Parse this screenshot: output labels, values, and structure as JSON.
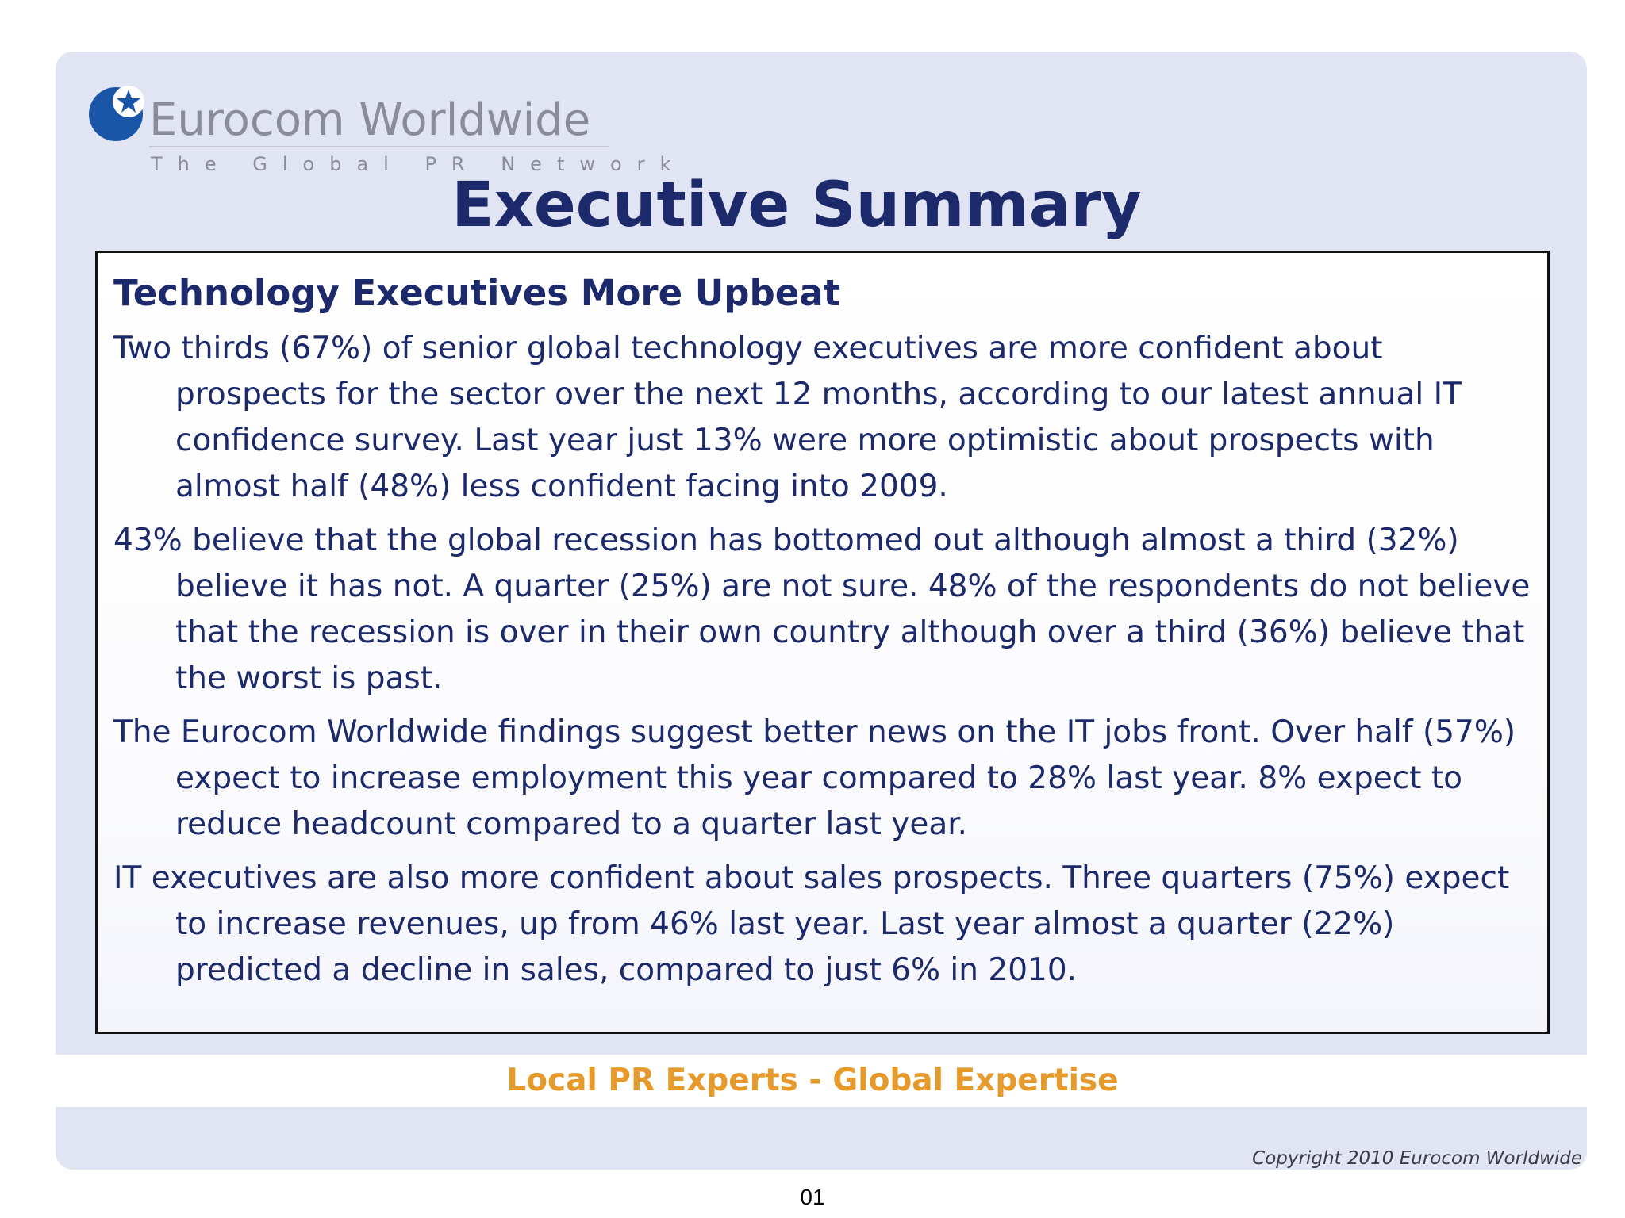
{
  "logo": {
    "name": "Eurocom Worldwide",
    "subtitle": "The Global PR Network",
    "globe_color": "#1a56a8"
  },
  "title": "Executive Summary",
  "section": {
    "heading": "Technology Executives More Upbeat",
    "paragraphs": [
      "Two thirds (67%) of senior global technology executives are more confident about prospects for the sector over the next 12 months, according to our latest annual IT confidence survey. Last year just 13% were more optimistic about prospects with almost half (48%) less confident facing into 2009.",
      "43% believe that the global recession has bottomed out although almost a third (32%) believe it has not. A quarter (25%) are not sure. 48% of the respondents do not believe that the recession is over in their own country although over a third (36%) believe that the worst is past.",
      "The Eurocom Worldwide findings suggest better news on the IT jobs front.  Over half (57%) expect to increase employment this year compared to 28% last year. 8% expect to reduce headcount compared to a quarter last year.",
      "IT executives are also more confident about sales prospects. Three quarters (75%) expect to increase revenues, up from 46% last year. Last year almost a quarter (22%) predicted a decline in sales, compared to just 6% in 2010."
    ]
  },
  "tagline": "Local PR Experts - Global Expertise",
  "copyright": "Copyright 2010 Eurocom Worldwide",
  "page_number": "01",
  "colors": {
    "title": "#1c2a6b",
    "tagline": "#e59a2b",
    "background": "#e1e4f2"
  }
}
